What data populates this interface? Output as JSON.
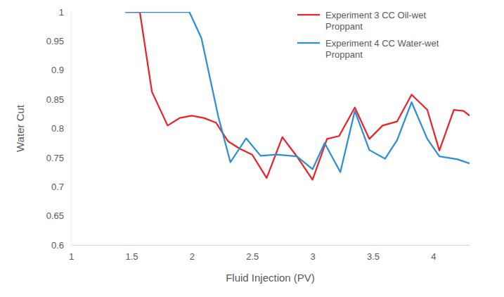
{
  "chart_data": {
    "type": "line",
    "x_label": "Fluid Injection (PV)",
    "y_label": "Water Cut",
    "xlim": [
      1,
      4.3
    ],
    "xticks": [
      1,
      1.5,
      2,
      2.5,
      3,
      3.5,
      4
    ],
    "ylim": [
      0.6,
      1
    ],
    "yticks": [
      0.6,
      0.65,
      0.7,
      0.75,
      0.8,
      0.85,
      0.9,
      0.95,
      1
    ],
    "grid": false,
    "legend": "top-right",
    "series": [
      {
        "name": "Experiment 3 CC Oil-wet Proppant",
        "color": "#e8232a",
        "line_style": "solid",
        "x": [
          1.45,
          1.57,
          1.67,
          1.8,
          1.9,
          2.0,
          2.1,
          2.2,
          2.3,
          2.4,
          2.5,
          2.62,
          2.75,
          2.87,
          3.0,
          3.12,
          3.22,
          3.35,
          3.47,
          3.58,
          3.7,
          3.82,
          3.95,
          4.05,
          4.17,
          4.25,
          4.3
        ],
        "values": [
          1,
          1,
          0.863,
          0.805,
          0.818,
          0.822,
          0.818,
          0.81,
          0.778,
          0.765,
          0.755,
          0.715,
          0.785,
          0.752,
          0.712,
          0.782,
          0.787,
          0.836,
          0.782,
          0.805,
          0.812,
          0.858,
          0.832,
          0.762,
          0.832,
          0.83,
          0.822
        ]
      },
      {
        "name": "Experiment 4 CC Water-wet Proppant",
        "color": "#2b8fd4",
        "line_style": "solid",
        "x": [
          1.45,
          1.57,
          1.98,
          2.08,
          2.22,
          2.32,
          2.45,
          2.57,
          2.7,
          2.87,
          3.0,
          3.1,
          3.23,
          3.35,
          3.47,
          3.6,
          3.7,
          3.82,
          3.95,
          4.05,
          4.2,
          4.3
        ],
        "values": [
          1,
          1,
          1,
          0.955,
          0.82,
          0.742,
          0.783,
          0.753,
          0.755,
          0.752,
          0.73,
          0.775,
          0.725,
          0.83,
          0.763,
          0.748,
          0.78,
          0.845,
          0.782,
          0.752,
          0.747,
          0.74
        ]
      }
    ]
  }
}
